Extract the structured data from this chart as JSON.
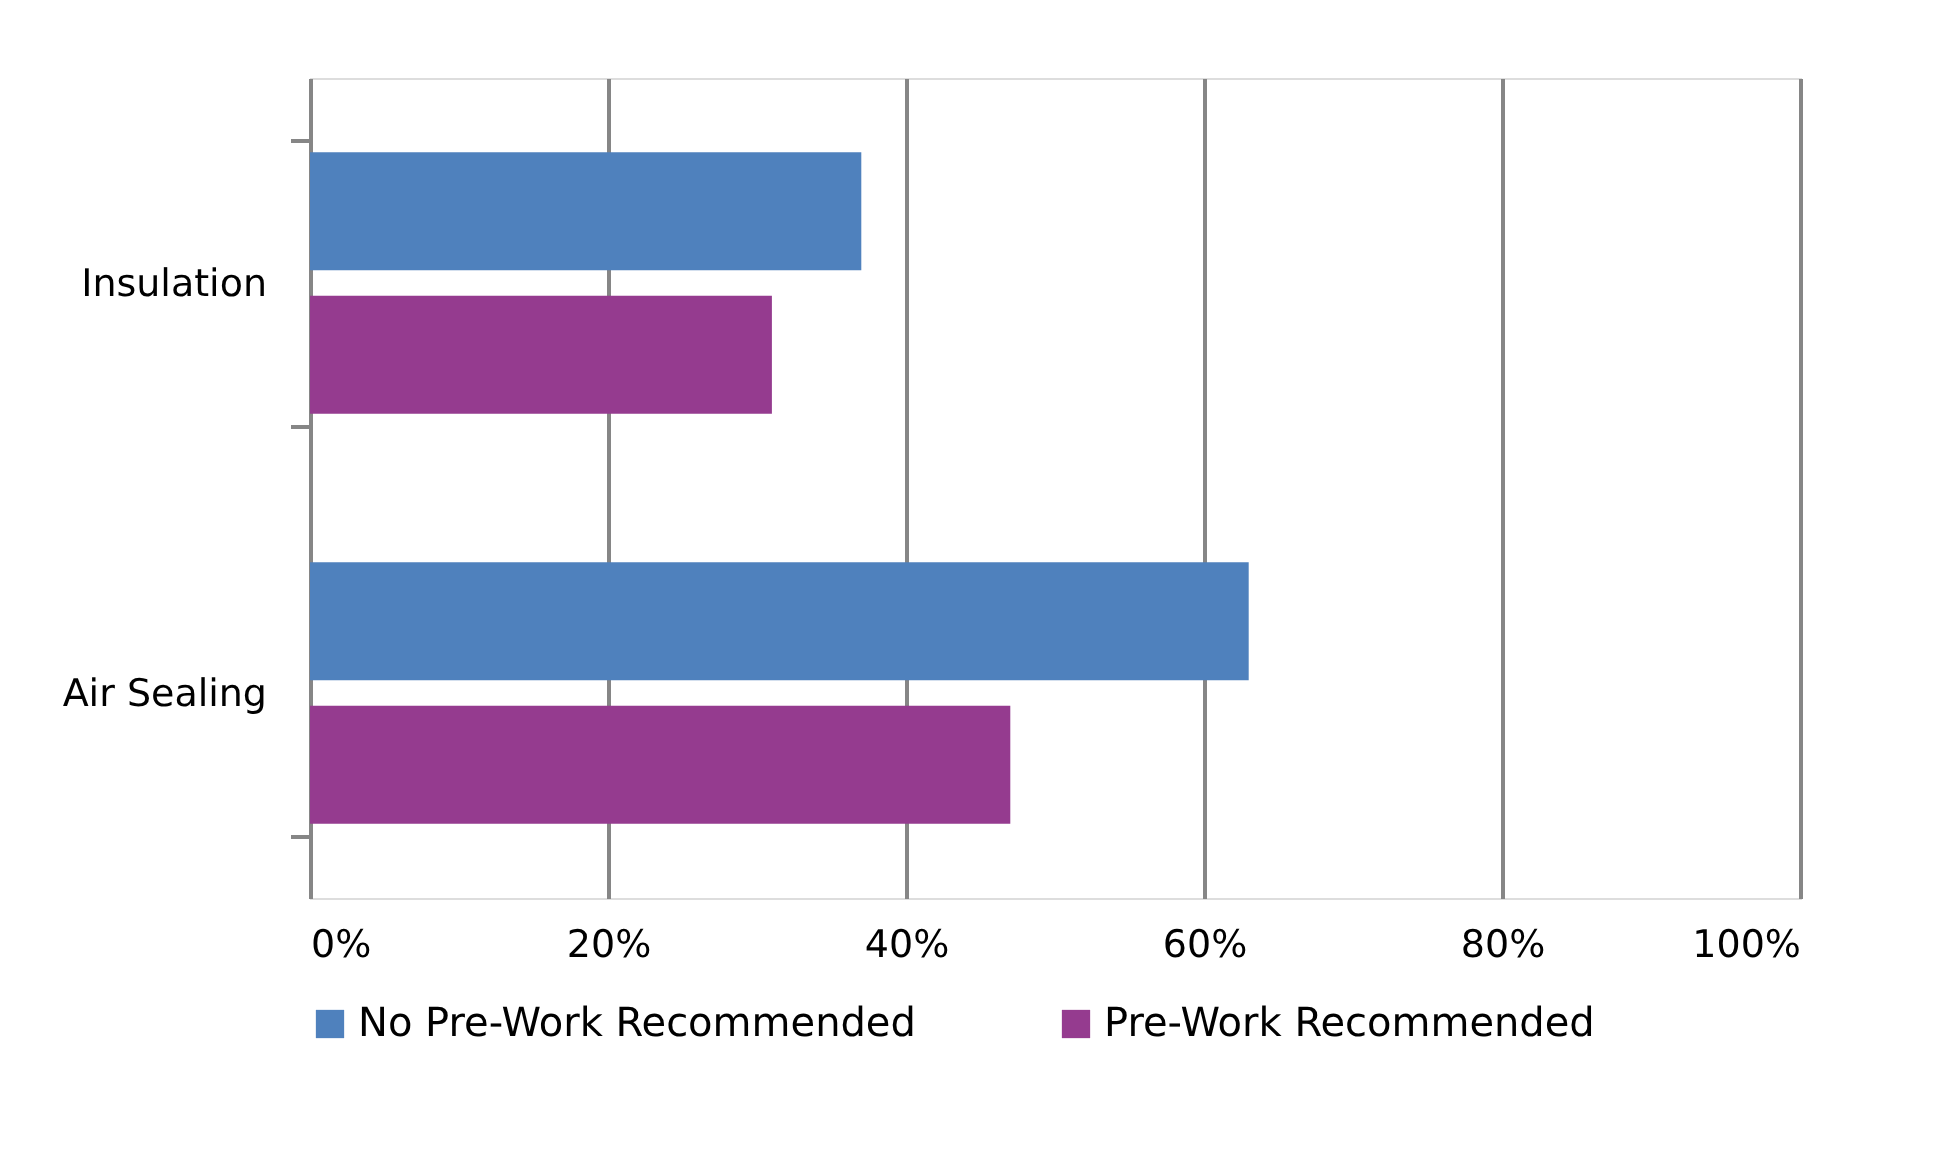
{
  "chart_data": {
    "type": "bar",
    "orientation": "horizontal",
    "categories": [
      "Insulation",
      "Air Sealing"
    ],
    "series": [
      {
        "name": "No Pre-Work Recommended",
        "color": "#4f81bd",
        "values": [
          37,
          63
        ]
      },
      {
        "name": "Pre-Work Recommended",
        "color": "#953b8f",
        "values": [
          31,
          47
        ]
      }
    ],
    "xlim": [
      0,
      100
    ],
    "xticks": [
      {
        "value": 0,
        "label": "0%"
      },
      {
        "value": 20,
        "label": "20%"
      },
      {
        "value": 40,
        "label": "40%"
      },
      {
        "value": 60,
        "label": "60%"
      },
      {
        "value": 80,
        "label": "80%"
      },
      {
        "value": 100,
        "label": "100%"
      }
    ],
    "grid": "x",
    "legend": "bottom"
  }
}
